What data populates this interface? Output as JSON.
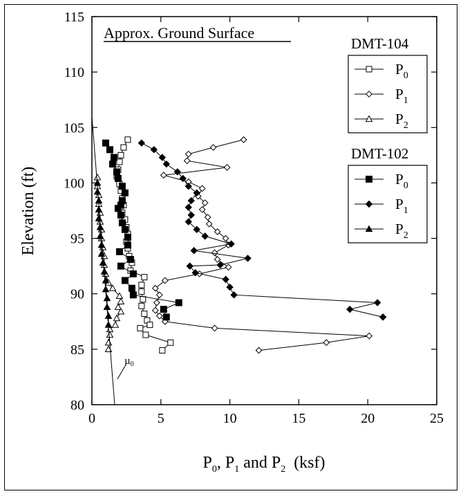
{
  "chart_data": {
    "type": "scatter",
    "title": "",
    "xlabel": {
      "p0": "P",
      "s0": "0",
      "sep1": ", P",
      "s1": "1",
      "sep2": " and P",
      "s2": "2",
      "unit": "  (ksf)"
    },
    "ylabel": "Elevation (ft)",
    "xlim": [
      0,
      25
    ],
    "ylim": [
      80,
      115
    ],
    "xticks": [
      0,
      5,
      10,
      15,
      20,
      25
    ],
    "yticks": [
      80,
      85,
      90,
      95,
      100,
      105,
      110,
      115
    ],
    "grid": false,
    "annotations": [
      {
        "text": "Approx. Ground Surface",
        "underlined": true
      },
      {
        "text": "µ",
        "sub": "0"
      }
    ],
    "legend_placement": "right",
    "legend_groups": [
      {
        "title": "DMT-104",
        "entries": [
          {
            "main": "P",
            "sub": "0",
            "marker": "square-open"
          },
          {
            "main": "P",
            "sub": "1",
            "marker": "diamond-open"
          },
          {
            "main": "P",
            "sub": "2",
            "marker": "triangle-open"
          }
        ]
      },
      {
        "title": "DMT-102",
        "entries": [
          {
            "main": "P",
            "sub": "0",
            "marker": "square-filled"
          },
          {
            "main": "P",
            "sub": "1",
            "marker": "diamond-filled"
          },
          {
            "main": "P",
            "sub": "2",
            "marker": "triangle-filled"
          }
        ]
      }
    ],
    "series": [
      {
        "group": "DMT-104",
        "name": "P0",
        "marker": "square-open",
        "points": [
          [
            2.6,
            103.9
          ],
          [
            2.3,
            103.2
          ],
          [
            2.1,
            102.5
          ],
          [
            2.0,
            101.9
          ],
          [
            1.9,
            101.2
          ],
          [
            1.8,
            100.6
          ],
          [
            2.0,
            99.9
          ],
          [
            2.1,
            99.3
          ],
          [
            2.2,
            98.6
          ],
          [
            2.3,
            98.0
          ],
          [
            2.2,
            97.3
          ],
          [
            2.4,
            96.7
          ],
          [
            2.5,
            96.0
          ],
          [
            2.6,
            95.4
          ],
          [
            2.5,
            94.7
          ],
          [
            2.6,
            94.1
          ],
          [
            2.7,
            93.4
          ],
          [
            2.9,
            92.8
          ],
          [
            2.8,
            92.1
          ],
          [
            3.8,
            91.5
          ],
          [
            3.6,
            90.8
          ],
          [
            3.6,
            90.2
          ],
          [
            3.7,
            89.5
          ],
          [
            3.6,
            88.9
          ],
          [
            3.8,
            88.2
          ],
          [
            4.0,
            87.6
          ],
          [
            4.2,
            87.2
          ],
          [
            3.5,
            86.9
          ],
          [
            3.9,
            86.3
          ],
          [
            5.7,
            85.6
          ],
          [
            5.1,
            84.9
          ]
        ]
      },
      {
        "group": "DMT-104",
        "name": "P1",
        "marker": "diamond-open",
        "points": [
          [
            11.0,
            103.9
          ],
          [
            8.8,
            103.2
          ],
          [
            7.0,
            102.6
          ],
          [
            6.9,
            102.0
          ],
          [
            9.8,
            101.4
          ],
          [
            5.2,
            100.7
          ],
          [
            7.0,
            100.1
          ],
          [
            8.0,
            99.5
          ],
          [
            7.7,
            98.8
          ],
          [
            8.2,
            98.2
          ],
          [
            8.0,
            97.6
          ],
          [
            8.4,
            96.9
          ],
          [
            8.5,
            96.3
          ],
          [
            9.1,
            95.6
          ],
          [
            9.7,
            95.0
          ],
          [
            9.9,
            94.4
          ],
          [
            8.9,
            93.7
          ],
          [
            9.1,
            93.1
          ],
          [
            9.9,
            92.4
          ],
          [
            7.8,
            91.8
          ],
          [
            5.3,
            91.2
          ],
          [
            4.6,
            90.5
          ],
          [
            4.9,
            89.9
          ],
          [
            4.7,
            89.2
          ],
          [
            4.6,
            88.5
          ],
          [
            4.9,
            88.0
          ],
          [
            5.3,
            87.5
          ],
          [
            8.9,
            86.9
          ],
          [
            20.1,
            86.2
          ],
          [
            17.0,
            85.6
          ],
          [
            12.1,
            84.9
          ]
        ]
      },
      {
        "group": "DMT-104",
        "name": "P2",
        "marker": "triangle-open",
        "points": [
          [
            0.4,
            100.5
          ],
          [
            0.4,
            99.7
          ],
          [
            0.5,
            98.9
          ],
          [
            0.5,
            98.1
          ],
          [
            0.6,
            97.3
          ],
          [
            0.6,
            96.5
          ],
          [
            0.7,
            95.8
          ],
          [
            0.7,
            95.0
          ],
          [
            0.8,
            94.2
          ],
          [
            0.9,
            93.4
          ],
          [
            0.9,
            92.6
          ],
          [
            1.0,
            91.8
          ],
          [
            1.2,
            91.0
          ],
          [
            1.5,
            90.5
          ],
          [
            2.0,
            89.8
          ],
          [
            2.1,
            89.3
          ],
          [
            1.9,
            88.8
          ],
          [
            2.1,
            88.4
          ],
          [
            1.8,
            87.8
          ],
          [
            1.7,
            87.2
          ],
          [
            1.3,
            86.8
          ],
          [
            1.3,
            86.3
          ],
          [
            1.2,
            85.6
          ],
          [
            1.2,
            85.0
          ]
        ]
      },
      {
        "group": "DMT-102",
        "name": "P0",
        "marker": "square-filled",
        "points": [
          [
            1.0,
            103.6
          ],
          [
            1.3,
            103.0
          ],
          [
            1.6,
            102.3
          ],
          [
            1.5,
            101.7
          ],
          [
            1.8,
            101.0
          ],
          [
            1.9,
            100.4
          ],
          [
            2.2,
            99.7
          ],
          [
            2.4,
            99.1
          ],
          [
            2.2,
            98.4
          ],
          [
            2.1,
            98.0
          ],
          [
            1.9,
            97.7
          ],
          [
            2.1,
            97.1
          ],
          [
            2.2,
            96.4
          ],
          [
            2.4,
            95.8
          ],
          [
            2.6,
            95.1
          ],
          [
            2.6,
            94.4
          ],
          [
            2.0,
            93.8
          ],
          [
            2.8,
            93.1
          ],
          [
            2.1,
            92.5
          ],
          [
            3.0,
            91.8
          ],
          [
            2.4,
            91.2
          ],
          [
            2.9,
            90.5
          ],
          [
            3.0,
            89.9
          ],
          [
            6.3,
            89.2
          ],
          [
            5.2,
            88.6
          ],
          [
            5.4,
            87.9
          ]
        ]
      },
      {
        "group": "DMT-102",
        "name": "P1",
        "marker": "diamond-filled",
        "points": [
          [
            3.6,
            103.6
          ],
          [
            4.5,
            103.0
          ],
          [
            5.1,
            102.3
          ],
          [
            5.4,
            101.7
          ],
          [
            6.2,
            101.0
          ],
          [
            6.6,
            100.4
          ],
          [
            7.0,
            99.7
          ],
          [
            7.6,
            99.1
          ],
          [
            7.2,
            98.4
          ],
          [
            7.0,
            97.8
          ],
          [
            7.2,
            97.1
          ],
          [
            7.0,
            96.5
          ],
          [
            7.6,
            95.8
          ],
          [
            8.2,
            95.2
          ],
          [
            10.1,
            94.5
          ],
          [
            7.4,
            93.9
          ],
          [
            11.3,
            93.2
          ],
          [
            9.3,
            92.6
          ],
          [
            7.1,
            92.5
          ],
          [
            7.5,
            91.9
          ],
          [
            9.7,
            91.3
          ],
          [
            10.0,
            90.6
          ],
          [
            10.3,
            89.9
          ],
          [
            20.7,
            89.2
          ],
          [
            18.7,
            88.6
          ],
          [
            21.1,
            87.9
          ]
        ]
      },
      {
        "group": "DMT-102",
        "name": "P2",
        "marker": "triangle-filled",
        "points": [
          [
            0.4,
            100.0
          ],
          [
            0.4,
            99.2
          ],
          [
            0.5,
            98.4
          ],
          [
            0.5,
            97.6
          ],
          [
            0.5,
            96.8
          ],
          [
            0.6,
            96.0
          ],
          [
            0.6,
            95.2
          ],
          [
            0.7,
            94.4
          ],
          [
            0.7,
            93.6
          ],
          [
            0.8,
            92.8
          ],
          [
            0.9,
            92.0
          ],
          [
            1.0,
            91.2
          ],
          [
            1.0,
            90.4
          ],
          [
            1.1,
            89.6
          ],
          [
            1.1,
            88.8
          ],
          [
            1.2,
            88.0
          ],
          [
            1.2,
            87.2
          ]
        ]
      },
      {
        "group": "",
        "name": "µ0",
        "marker": "none",
        "points": [
          [
            0.0,
            106.0
          ],
          [
            1.65,
            80.0
          ]
        ]
      }
    ]
  }
}
